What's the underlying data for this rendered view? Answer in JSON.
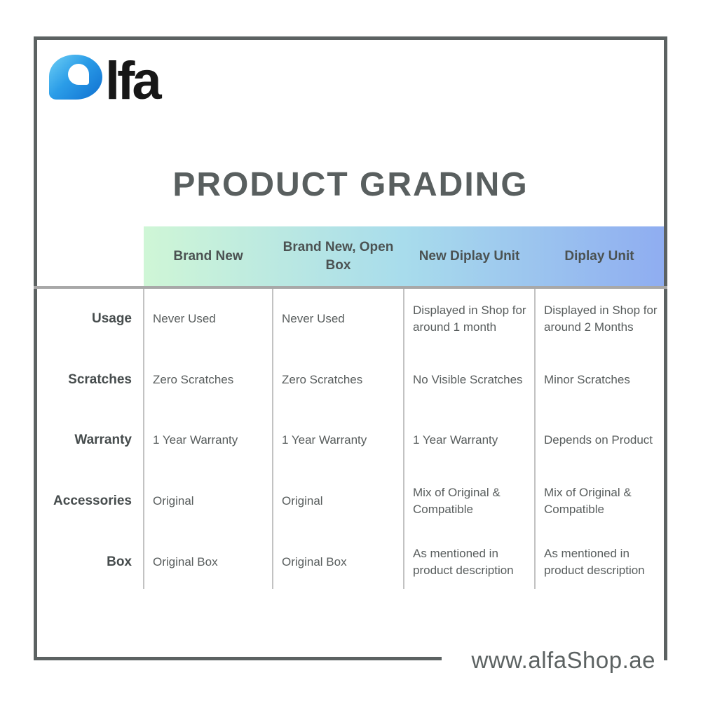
{
  "logo": {
    "blue_letter": "a",
    "black_letters": "lfa"
  },
  "title": "PRODUCT GRADING",
  "table": {
    "columns": [
      "Brand New",
      "Brand New, Open Box",
      "New Diplay Unit",
      "Diplay Unit"
    ],
    "rows": [
      {
        "label": "Usage",
        "values": [
          "Never Used",
          "Never Used",
          "Displayed in Shop for around 1 month",
          "Displayed in Shop for around 2 Months"
        ]
      },
      {
        "label": "Scratches",
        "values": [
          "Zero Scratches",
          "Zero Scratches",
          "No Visible Scratches",
          "Minor Scratches"
        ]
      },
      {
        "label": "Warranty",
        "values": [
          "1 Year Warranty",
          "1 Year Warranty",
          "1 Year Warranty",
          "Depends on Product"
        ]
      },
      {
        "label": "Accessories",
        "values": [
          "Original",
          "Original",
          "Mix of Original & Compatible",
          "Mix of Original & Compatible"
        ]
      },
      {
        "label": "Box",
        "values": [
          "Original Box",
          "Original Box",
          "As mentioned in product description",
          "As mentioned in product description"
        ]
      }
    ]
  },
  "footer": {
    "website": "www.alfaShop.ae"
  },
  "colors": {
    "frame_border": "#5c6262",
    "title_text": "#595f5f",
    "header_gradient_start": "#cff6d6",
    "header_gradient_mid": "#a8dcec",
    "header_gradient_end": "#8fadf1",
    "header_text": "#4b5252",
    "heavy_divider": "#a8a8a8",
    "thin_divider": "#c2c2c2",
    "row_label_text": "#464c4d",
    "cell_text": "#585d5d",
    "logo_blue_start": "#6fd0f5",
    "logo_blue_end": "#0f6fd0",
    "logo_black": "#171717",
    "url_text": "#5c6262"
  }
}
